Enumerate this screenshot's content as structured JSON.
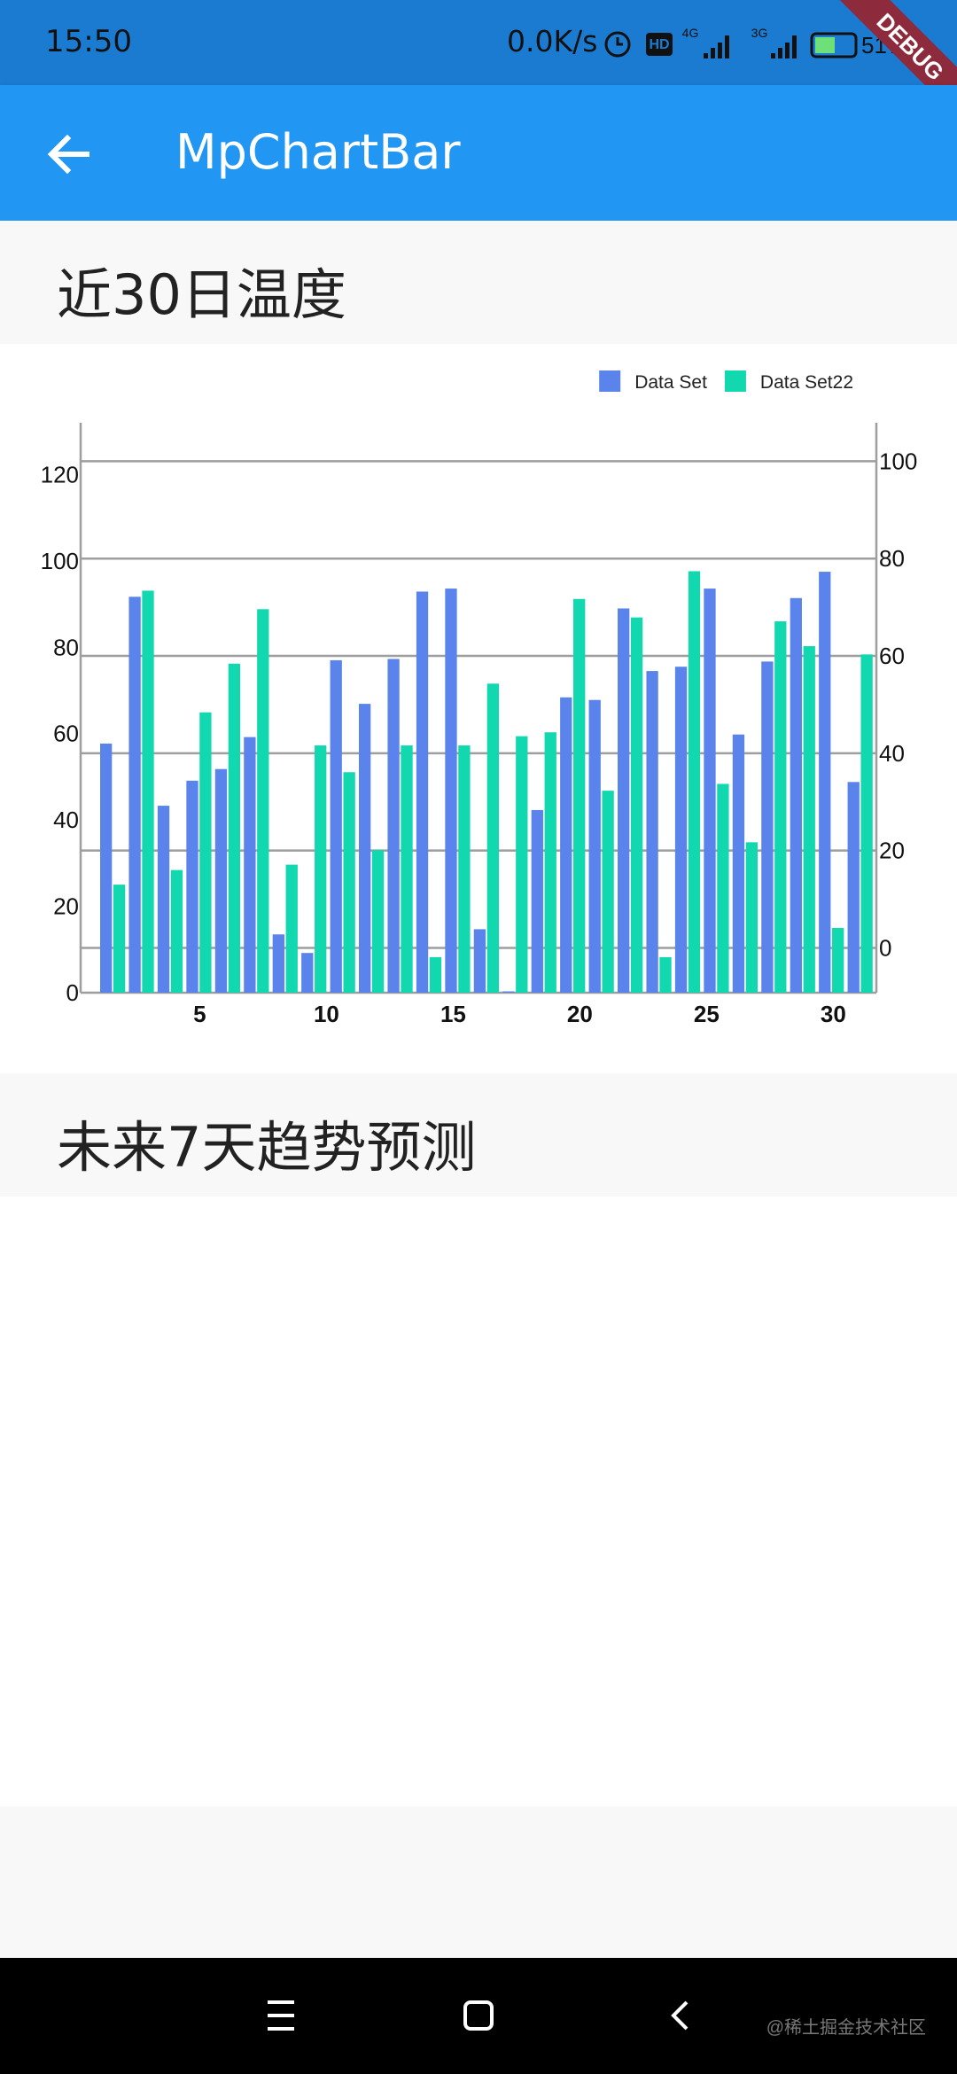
{
  "status_bar": {
    "time": "15:50",
    "speed": "0.0K/s",
    "hd": "HD",
    "net1": "4G",
    "net2": "3G",
    "battery": "51%",
    "banner": "DEBUG"
  },
  "app_bar": {
    "title": "MpChartBar"
  },
  "sections": [
    "近30日温度",
    "未来7天趋势预测"
  ],
  "watermark": "@稀土掘金技术社区",
  "chart_data": {
    "type": "bar",
    "categories": [
      null,
      null,
      null,
      null,
      null,
      null,
      null,
      null,
      null,
      null,
      null,
      null,
      null,
      null,
      null,
      null,
      null,
      null,
      null,
      null,
      null,
      null,
      null,
      null,
      null,
      null,
      null
    ],
    "xlim": [
      0.3,
      31.7
    ],
    "xticks": [
      5,
      10,
      15,
      20,
      25,
      30
    ],
    "ylim": [
      0,
      132
    ],
    "yticks": [
      0,
      20,
      40,
      60,
      80,
      100,
      120
    ],
    "y2lim": [
      -9.2,
      107.9
    ],
    "y2ticks": [
      0,
      20,
      40,
      60,
      80,
      100
    ],
    "grid": "y2",
    "legend": "top-right",
    "series": [
      {
        "name": "Data Set",
        "color": "#5a84ec",
        "values": [
          57.7,
          91.7,
          43.3,
          49.1,
          51.8,
          59.2,
          13.5,
          9.2,
          77.0,
          66.9,
          77.3,
          92.9,
          93.6,
          14.7,
          0.3,
          42.3,
          68.4,
          67.8,
          89.0,
          74.5,
          75.5,
          93.6,
          59.8,
          76.7,
          91.4,
          97.5,
          48.8
        ]
      },
      {
        "name": "Data Set22",
        "color": "#12d8b0",
        "axis": "y2",
        "values": [
          13.0,
          73.4,
          16.0,
          48.4,
          58.4,
          69.6,
          17.1,
          41.6,
          36.1,
          20.1,
          41.6,
          -1.9,
          41.6,
          54.3,
          43.5,
          44.3,
          71.7,
          32.3,
          67.9,
          -1.9,
          77.4,
          33.7,
          21.7,
          67.1,
          62.0,
          4.1,
          60.3
        ]
      }
    ]
  }
}
